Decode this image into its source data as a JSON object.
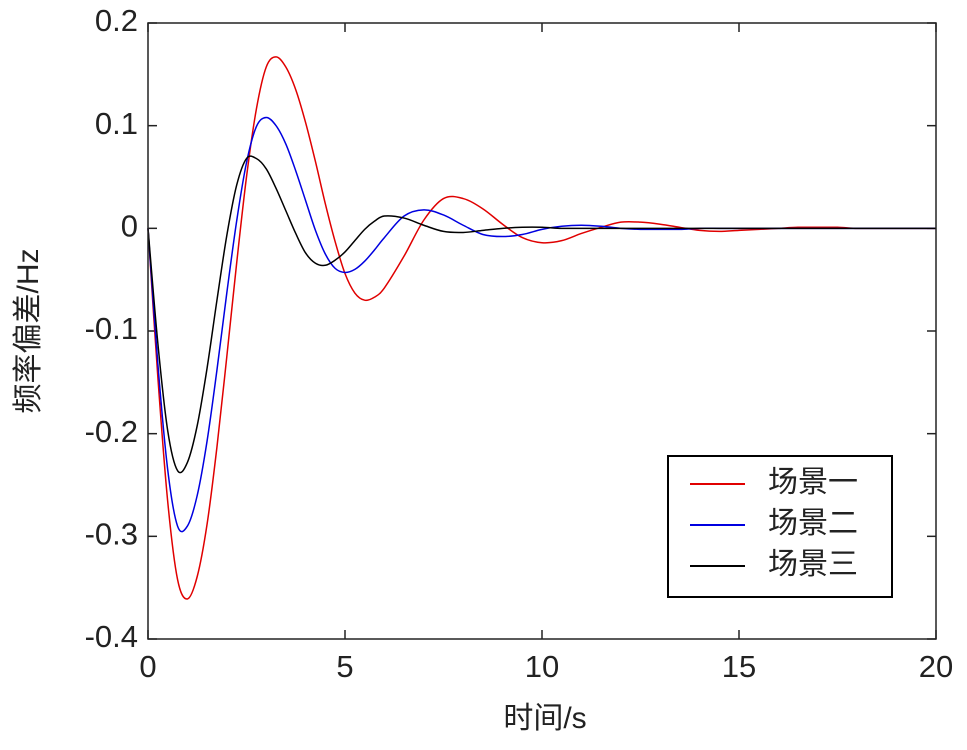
{
  "chart_data": {
    "type": "line",
    "xlabel": "时间/s",
    "ylabel": "频率偏差/Hz",
    "x": [
      0,
      0.25,
      0.5,
      0.75,
      1,
      1.25,
      1.5,
      1.75,
      2,
      2.25,
      2.5,
      2.75,
      3,
      3.25,
      3.5,
      3.75,
      4,
      4.25,
      4.5,
      4.75,
      5,
      5.25,
      5.5,
      5.75,
      6,
      6.5,
      7,
      7.5,
      8,
      8.5,
      9,
      9.5,
      10,
      10.5,
      11,
      11.5,
      12,
      12.5,
      13,
      13.5,
      14,
      14.5,
      15,
      15.5,
      16,
      16.5,
      17,
      17.5,
      18,
      18.5,
      19,
      19.5,
      20
    ],
    "series": [
      {
        "name": "场景一",
        "color": "#e00000",
        "values": [
          0,
          -0.145,
          -0.266,
          -0.342,
          -0.361,
          -0.339,
          -0.288,
          -0.213,
          -0.125,
          -0.034,
          0.05,
          0.116,
          0.157,
          0.167,
          0.157,
          0.135,
          0.103,
          0.065,
          0.024,
          -0.013,
          -0.044,
          -0.063,
          -0.07,
          -0.067,
          -0.058,
          -0.027,
          0.008,
          0.029,
          0.029,
          0.019,
          0.004,
          -0.009,
          -0.014,
          -0.012,
          -0.005,
          0.001,
          0.006,
          0.006,
          0.004,
          0.001,
          -0.002,
          -0.003,
          -0.002,
          -0.001,
          0,
          0.001,
          0.001,
          0.001,
          0,
          0,
          0,
          0,
          0
        ]
      },
      {
        "name": "场景二",
        "color": "#0000e0",
        "values": [
          0,
          -0.132,
          -0.235,
          -0.29,
          -0.29,
          -0.26,
          -0.207,
          -0.138,
          -0.063,
          0.007,
          0.064,
          0.099,
          0.108,
          0.1,
          0.082,
          0.056,
          0.027,
          -0.002,
          -0.025,
          -0.039,
          -0.043,
          -0.04,
          -0.032,
          -0.021,
          -0.009,
          0.012,
          0.018,
          0.013,
          0.003,
          -0.006,
          -0.008,
          -0.006,
          -0.001,
          0.002,
          0.003,
          0.002,
          0,
          -0.001,
          -0.001,
          -0.001,
          0,
          0,
          0,
          0,
          0,
          0,
          0,
          0,
          0,
          0,
          0,
          0,
          0
        ]
      },
      {
        "name": "场景三",
        "color": "#000000",
        "values": [
          0,
          -0.112,
          -0.197,
          -0.236,
          -0.228,
          -0.192,
          -0.136,
          -0.07,
          -0.007,
          0.042,
          0.068,
          0.068,
          0.058,
          0.039,
          0.017,
          -0.005,
          -0.024,
          -0.034,
          -0.036,
          -0.031,
          -0.023,
          -0.012,
          -0.001,
          0.007,
          0.012,
          0.01,
          0.003,
          -0.003,
          -0.004,
          -0.002,
          0,
          0.001,
          0.001,
          0,
          0,
          0,
          0,
          0,
          0,
          0,
          0,
          0,
          0,
          0,
          0,
          0,
          0,
          0,
          0,
          0,
          0,
          0,
          0
        ]
      }
    ],
    "xlim": [
      0,
      20
    ],
    "xticks": [
      0,
      5,
      10,
      15,
      20
    ],
    "ylim": [
      -0.4,
      0.2
    ],
    "yticks": [
      -0.4,
      -0.3,
      -0.2,
      -0.1,
      0,
      0.1,
      0.2
    ],
    "legend": "lower-right"
  }
}
